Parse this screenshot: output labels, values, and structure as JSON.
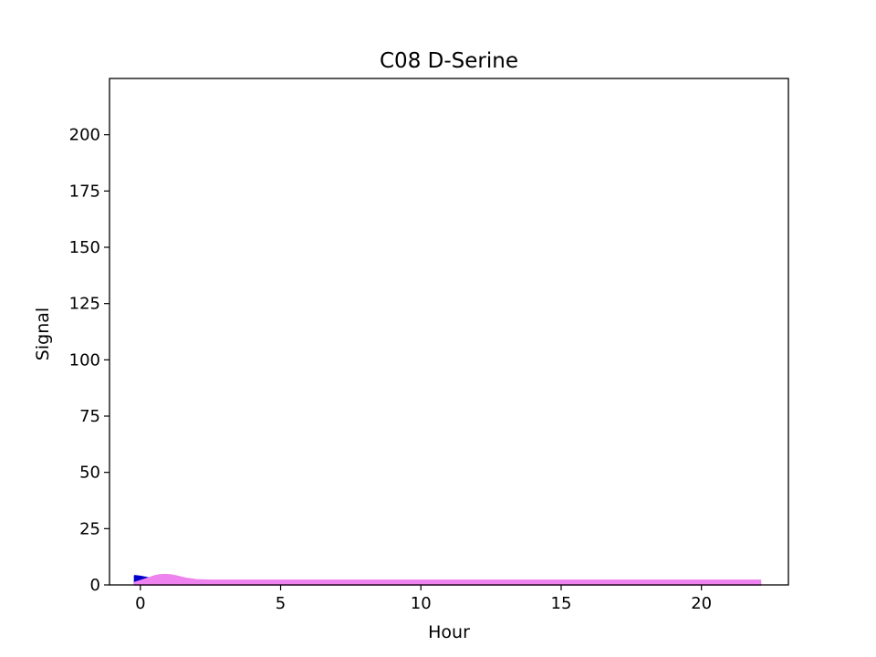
{
  "chart_data": {
    "type": "area",
    "title": "C08 D-Serine",
    "xlabel": "Hour",
    "ylabel": "Signal",
    "xlim": [
      -1.1,
      23.1
    ],
    "ylim": [
      0,
      225
    ],
    "xticks": [
      0,
      5,
      10,
      15,
      20
    ],
    "yticks": [
      0,
      25,
      50,
      75,
      100,
      125,
      150,
      175,
      200
    ],
    "grid": false,
    "legend": "none",
    "series": [
      {
        "color": "#0000cc",
        "x": [
          -0.2,
          0.0,
          0.3,
          0.5,
          0.7,
          0.9,
          1.1,
          1.3,
          1.6,
          2.0,
          2.5,
          3.0,
          5.0,
          10.0,
          15.0,
          20.0,
          22.1
        ],
        "y": [
          4.0,
          3.7,
          3.0,
          2.0,
          1.3,
          1.0,
          0.9,
          0.8,
          0.6,
          0.5,
          0.4,
          0.4,
          0.4,
          0.4,
          0.4,
          0.4,
          0.4
        ]
      },
      {
        "color": "#ee82ee",
        "x": [
          -0.2,
          0.0,
          0.3,
          0.5,
          0.7,
          0.9,
          1.1,
          1.3,
          1.6,
          2.0,
          2.5,
          3.0,
          5.0,
          10.0,
          15.0,
          20.0,
          22.1
        ],
        "y": [
          1.0,
          1.8,
          3.0,
          3.9,
          4.4,
          4.5,
          4.3,
          3.8,
          2.9,
          2.2,
          2.0,
          2.0,
          2.0,
          2.0,
          2.0,
          2.0,
          2.0
        ]
      }
    ]
  }
}
